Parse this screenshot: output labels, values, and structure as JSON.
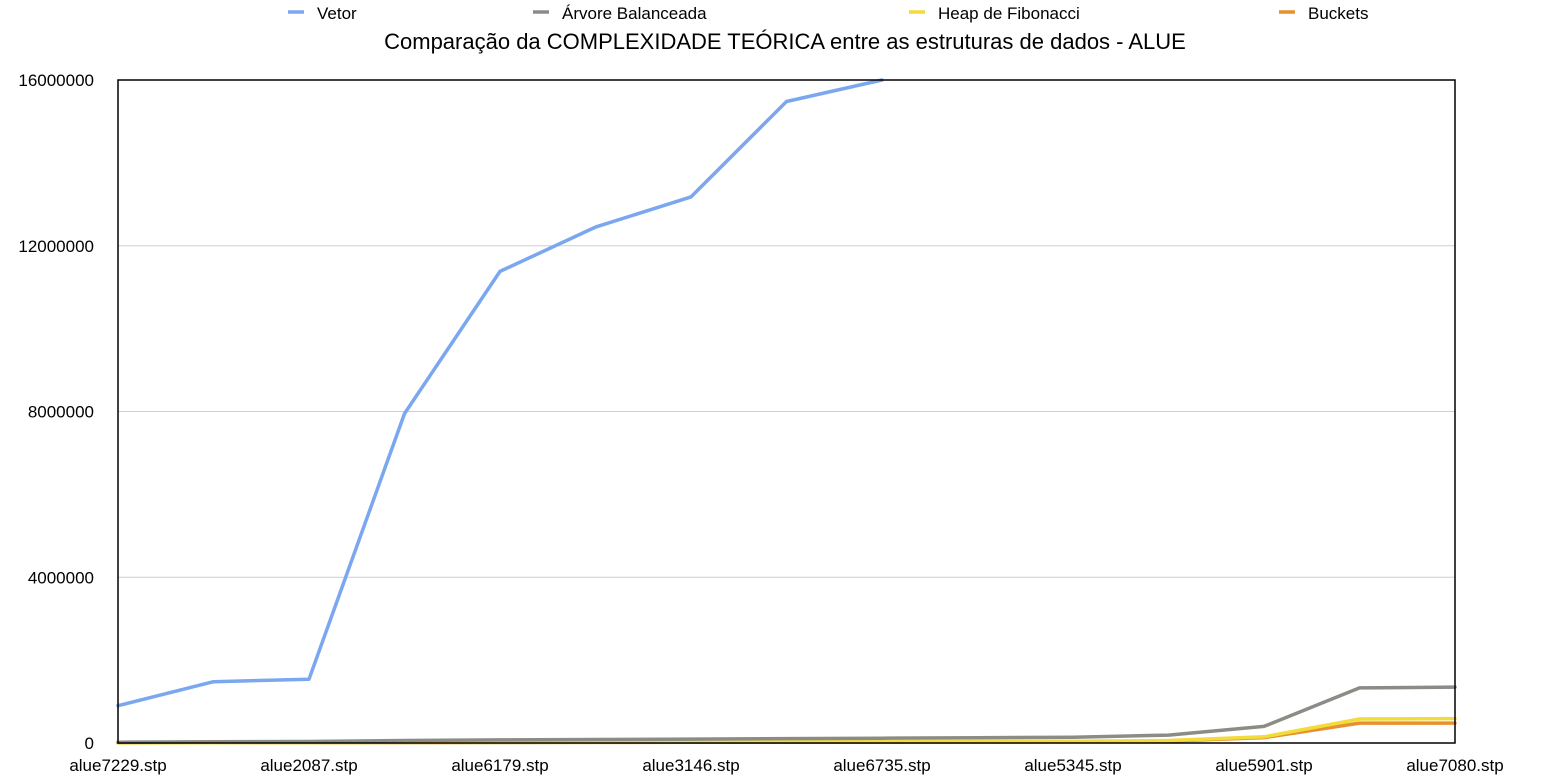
{
  "chart_data": {
    "type": "line",
    "title": "Comparação da COMPLEXIDADE TEÓRICA entre as estruturas de dados  - ALUE",
    "xlabel": "",
    "ylabel": "",
    "ylim": [
      0,
      16000000
    ],
    "yticks": [
      "0",
      "4000000",
      "8000000",
      "12000000",
      "16000000"
    ],
    "grid": true,
    "legend_position": "top",
    "categories": [
      "alue7229.stp",
      "",
      "alue2087.stp",
      "",
      "alue6179.stp",
      "",
      "alue3146.stp",
      "",
      "alue6735.stp",
      "",
      "alue5345.stp",
      "",
      "alue5901.stp",
      "",
      "alue7080.stp"
    ],
    "series": [
      {
        "name": "Vetor",
        "color": "#7aa7ef",
        "values": [
          900000,
          1480000,
          1540000,
          7950000,
          11380000,
          12450000,
          13180000,
          15480000,
          16000000,
          null,
          null,
          null,
          null,
          null,
          null
        ]
      },
      {
        "name": "Árvore Balanceada",
        "color": "#8c8c87",
        "values": [
          20000,
          30000,
          35000,
          60000,
          75000,
          85000,
          95000,
          105000,
          115000,
          125000,
          140000,
          190000,
          400000,
          1330000,
          1350000
        ]
      },
      {
        "name": "Heap de Fibonacci",
        "color": "#f2dc3c",
        "values": [
          5000,
          8000,
          9000,
          14000,
          18000,
          20000,
          24000,
          28000,
          32000,
          36000,
          42000,
          60000,
          150000,
          580000,
          590000
        ]
      },
      {
        "name": "Buckets",
        "color": "#e8902f",
        "values": [
          3000,
          5000,
          6000,
          10000,
          13000,
          15000,
          18000,
          21000,
          24000,
          27000,
          32000,
          45000,
          130000,
          480000,
          480000
        ]
      }
    ]
  }
}
